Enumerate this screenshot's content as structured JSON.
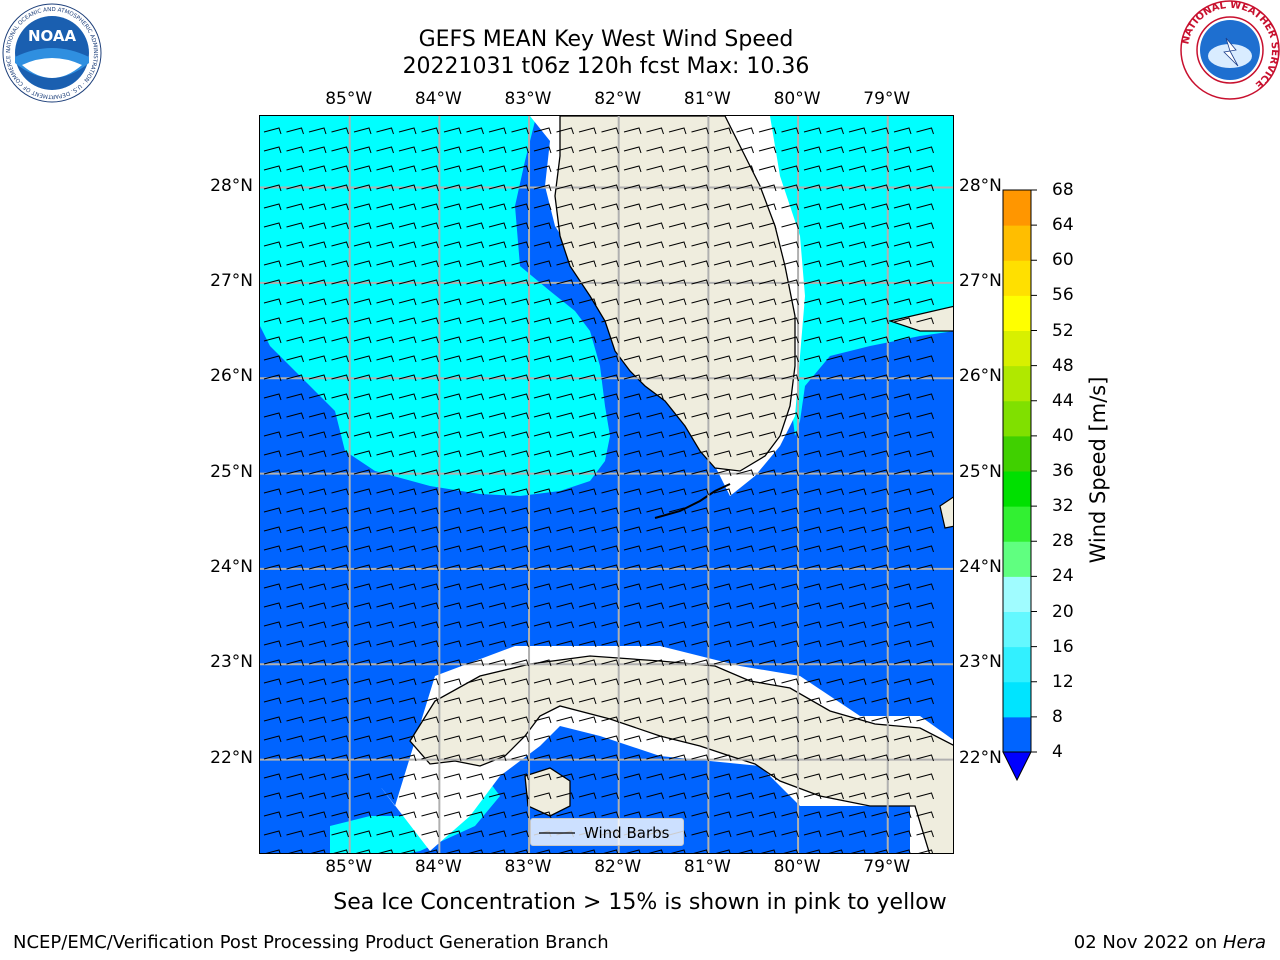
{
  "title_line1": "GEFS MEAN Key West Wind Speed",
  "title_line2": "20221031 t06z 120h fcst   Max: 10.36",
  "noaa_logo": {
    "text": "NOAA",
    "ring_text": "NATIONAL OCEANIC AND ATMOSPHERIC ADMINISTRATION · U.S. DEPARTMENT OF COMMERCE",
    "icon": "noaa-logo"
  },
  "nws_logo": {
    "ring_text": "NATIONAL WEATHER SERVICE",
    "icon": "nws-logo"
  },
  "lon_labels": [
    "85°W",
    "84°W",
    "83°W",
    "82°W",
    "81°W",
    "80°W",
    "79°W"
  ],
  "lat_labels": [
    "28°N",
    "27°N",
    "26°N",
    "25°N",
    "24°N",
    "23°N",
    "22°N"
  ],
  "map_extent": {
    "lon_min": -86.0,
    "lon_max": -78.25,
    "lat_min": 21.0,
    "lat_max": 28.75
  },
  "legend_label": "Wind Barbs",
  "colorbar": {
    "title": "Wind Speed [m/s]",
    "ticks": [
      "68",
      "64",
      "60",
      "56",
      "52",
      "48",
      "44",
      "40",
      "36",
      "32",
      "28",
      "24",
      "20",
      "16",
      "12",
      "8",
      "4"
    ],
    "colors_bottom_to_top": [
      "#0064ff",
      "#00e4ff",
      "#32f0ff",
      "#64f8ff",
      "#a0fcff",
      "#60ff80",
      "#32f032",
      "#00e000",
      "#40d000",
      "#80e000",
      "#b0e800",
      "#d8f000",
      "#ffff00",
      "#ffe000",
      "#ffbe00",
      "#ff9600",
      "#ff6400",
      "#ff3200",
      "#ff0000"
    ],
    "under_color": "#0000ff",
    "colors_note": "levels 4-68 step 4"
  },
  "sea_ice_note": "Sea Ice Concentration > 15% is shown in pink to yellow",
  "footer_left": "NCEP/EMC/Verification Post Processing Product Generation Branch",
  "footer_date": "02 Nov 2022 on ",
  "footer_machine": "Hera",
  "colors": {
    "land": "#efedde",
    "ocean_low": "#0064ff",
    "ocean_mid": "#00ffff",
    "grid": "#b0b0b0"
  }
}
